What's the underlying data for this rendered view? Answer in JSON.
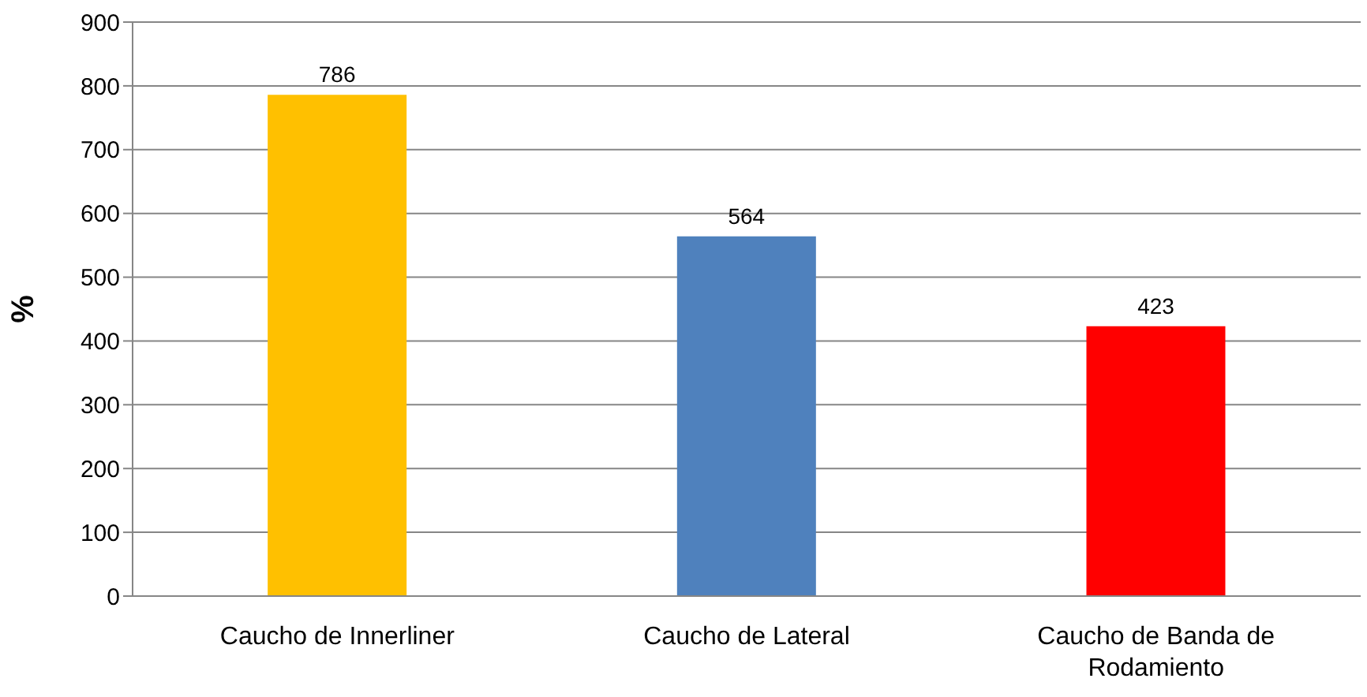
{
  "chart_data": {
    "type": "bar",
    "ylabel": "%",
    "categories": [
      "Caucho de Innerliner",
      "Caucho de Lateral",
      "Caucho de Banda de Rodamiento"
    ],
    "values": [
      786,
      564,
      423
    ],
    "colors": [
      "#ffc000",
      "#4f81bd",
      "#ff0000"
    ],
    "ylim": [
      0,
      900
    ],
    "yticks": [
      0,
      100,
      200,
      300,
      400,
      500,
      600,
      700,
      800,
      900
    ],
    "grid": "y",
    "data_labels": true
  }
}
